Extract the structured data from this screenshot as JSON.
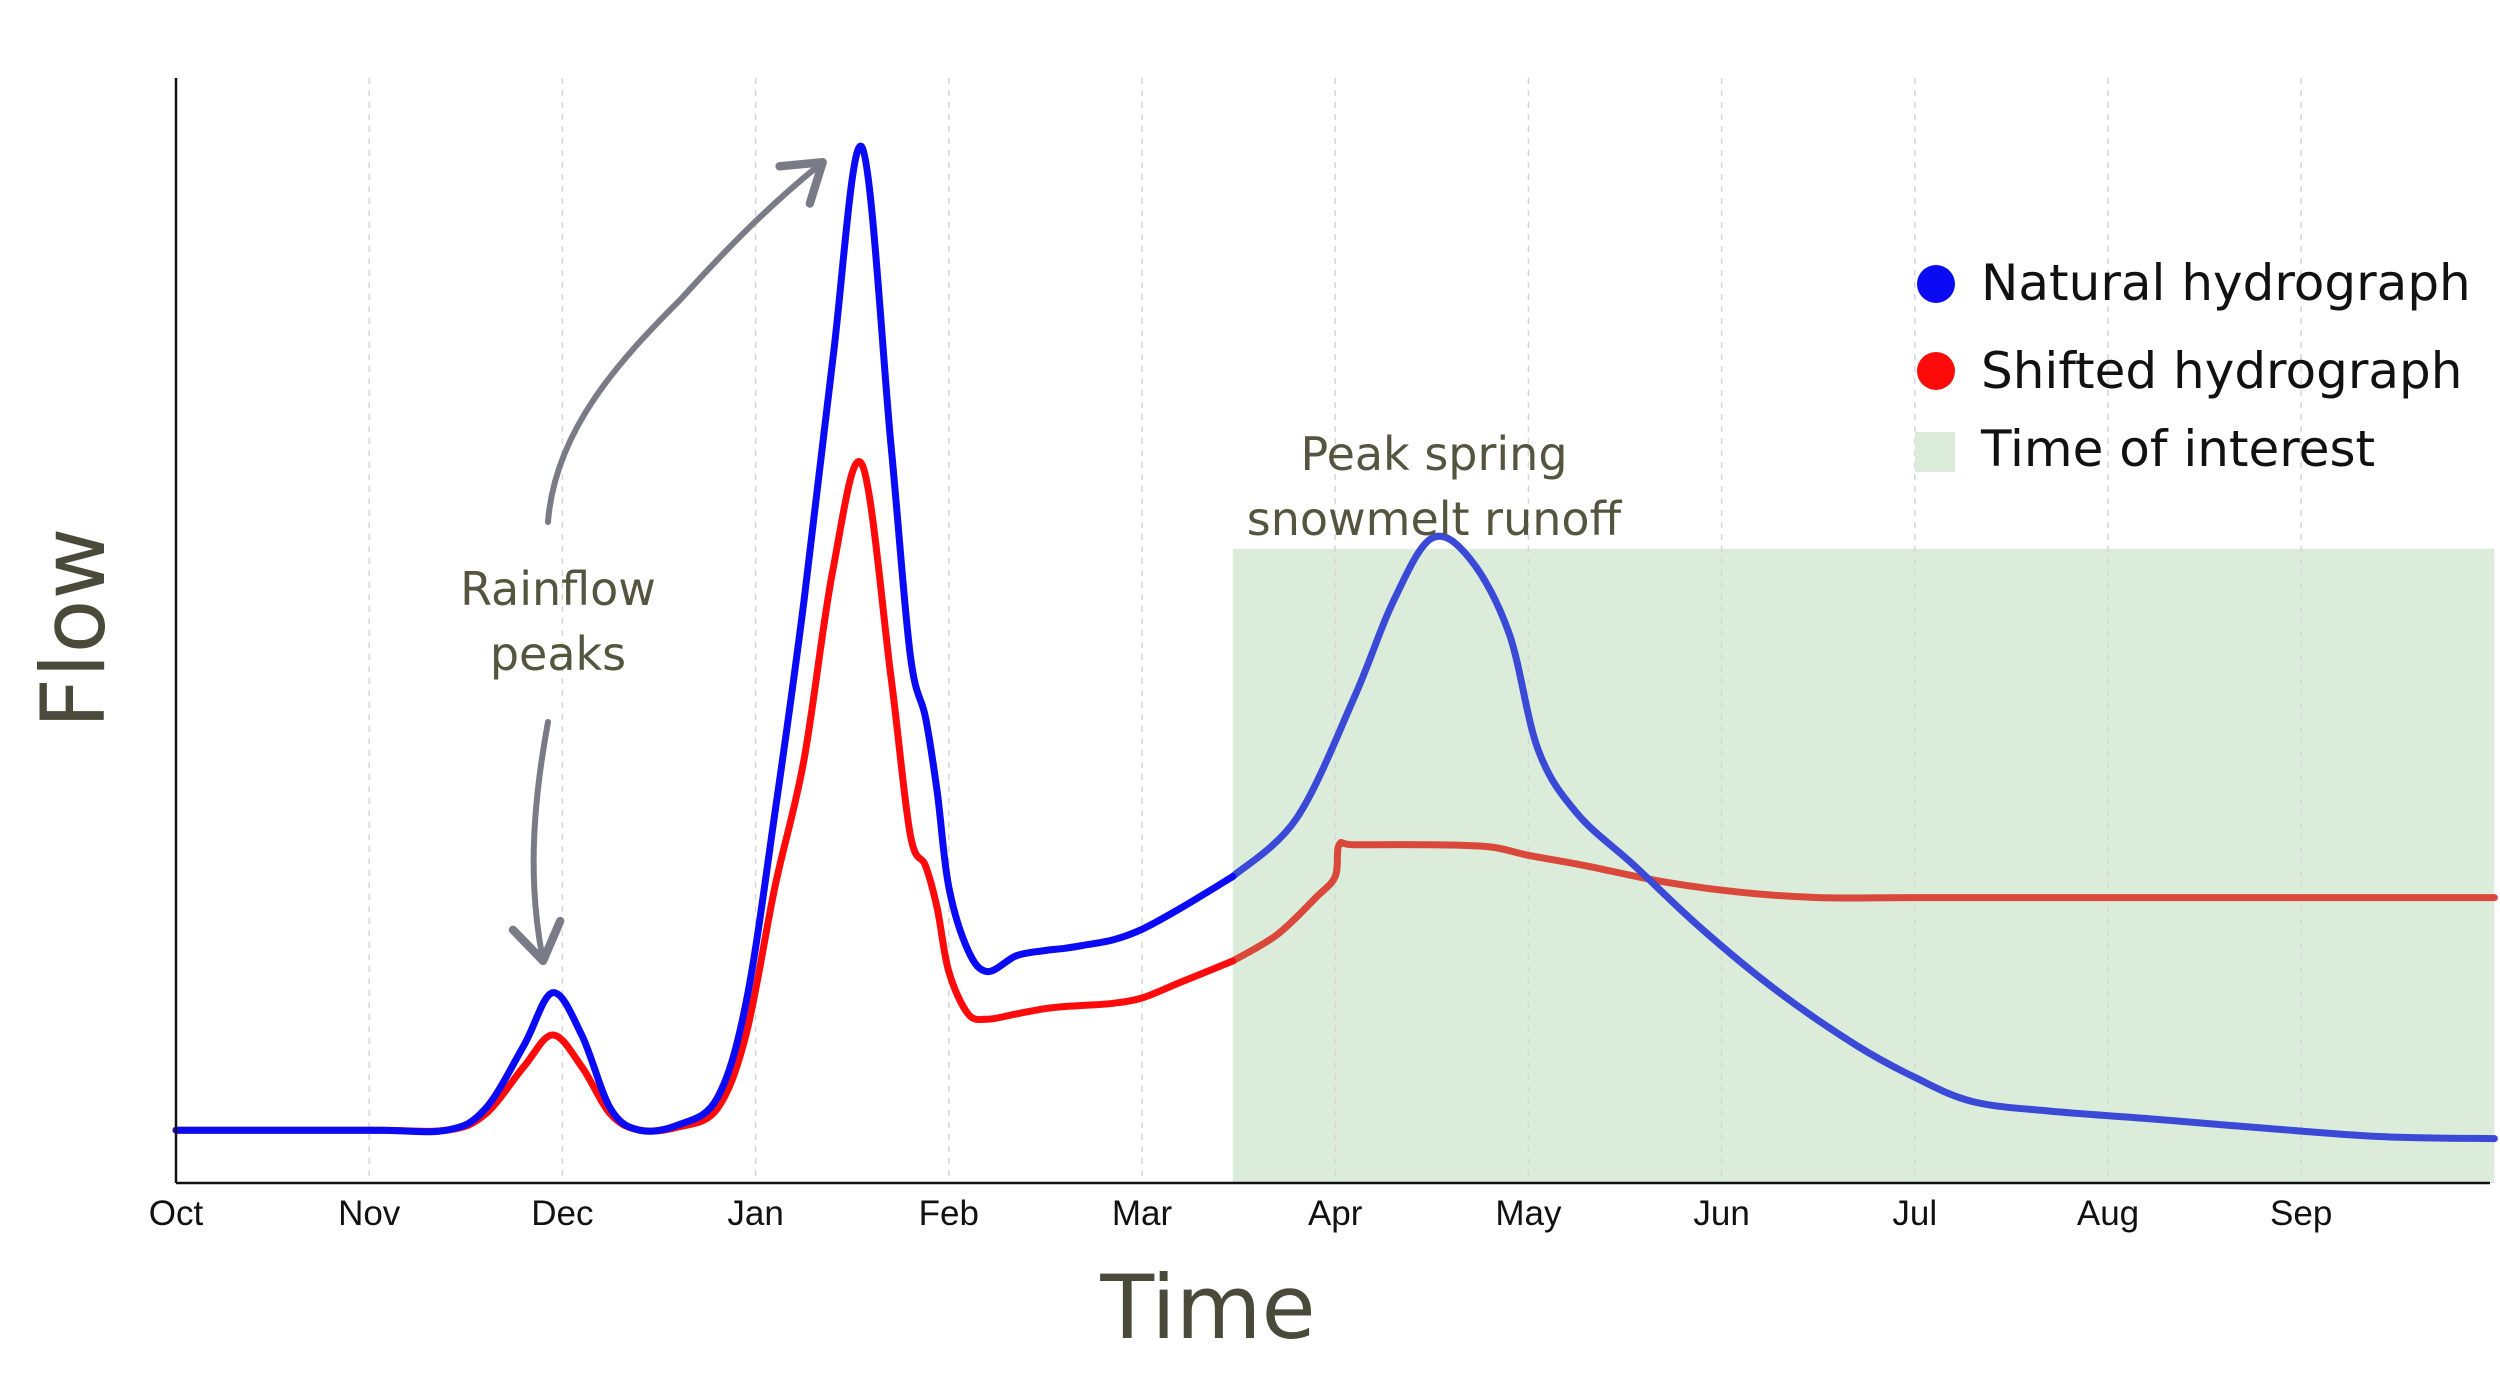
{
  "chart_data": {
    "type": "line",
    "xlabel": "Time",
    "ylabel": "Flow",
    "x_ticks": [
      "Oct",
      "Nov",
      "Dec",
      "Jan",
      "Feb",
      "Mar",
      "Apr",
      "May",
      "Jun",
      "Jul",
      "Aug",
      "Sep"
    ],
    "xlim": [
      "Oct",
      "end of Sep"
    ],
    "y_tick_labels_shown": false,
    "grid": "vertical dashed",
    "legend_position": "top-right",
    "legend": [
      {
        "label": "Natural hydrograph",
        "marker": "circle",
        "color": "#0a0af5"
      },
      {
        "label": "Shifted hydrograph",
        "marker": "circle",
        "color": "#ff0a0a"
      },
      {
        "label": "Time of interest",
        "marker": "square",
        "color": "#dcecda"
      }
    ],
    "time_of_interest": {
      "start_month": 5.47,
      "end_month": 12.0,
      "top_relative": 0.6
    },
    "annotations": [
      {
        "lines": [
          "Rainflow",
          "peaks"
        ]
      },
      {
        "lines": [
          "Peak spring",
          "snowmelt runoff"
        ]
      }
    ],
    "series": [
      {
        "name": "Natural hydrograph",
        "color": "#0a0af5",
        "x": [
          0,
          1.0,
          1.4,
          1.6,
          1.8,
          1.95,
          2.1,
          2.25,
          2.4,
          2.6,
          2.8,
          2.95,
          3.1,
          3.25,
          3.4,
          3.55,
          3.7,
          3.8,
          3.88,
          3.94,
          4.0,
          4.1,
          4.2,
          4.35,
          4.5,
          4.6,
          4.7,
          4.85,
          5.0,
          5.2,
          5.47
        ],
        "y": [
          0.05,
          0.05,
          0.05,
          0.07,
          0.13,
          0.18,
          0.14,
          0.07,
          0.05,
          0.055,
          0.08,
          0.17,
          0.35,
          0.55,
          0.78,
          0.98,
          0.7,
          0.5,
          0.44,
          0.37,
          0.28,
          0.22,
          0.2,
          0.215,
          0.22,
          0.222,
          0.225,
          0.23,
          0.24,
          0.26,
          0.29
        ]
      },
      {
        "name": "Shifted hydrograph",
        "color": "#ff0a0a",
        "x": [
          0,
          1.0,
          1.4,
          1.6,
          1.8,
          1.95,
          2.1,
          2.25,
          2.4,
          2.6,
          2.8,
          2.95,
          3.1,
          3.25,
          3.4,
          3.55,
          3.7,
          3.8,
          3.88,
          3.94,
          4.0,
          4.1,
          4.2,
          4.35,
          4.5,
          4.6,
          4.7,
          4.85,
          5.0,
          5.2,
          5.47
        ],
        "y": [
          0.05,
          0.05,
          0.05,
          0.065,
          0.11,
          0.14,
          0.11,
          0.065,
          0.05,
          0.053,
          0.07,
          0.14,
          0.28,
          0.4,
          0.58,
          0.68,
          0.48,
          0.33,
          0.3,
          0.26,
          0.2,
          0.16,
          0.155,
          0.16,
          0.165,
          0.167,
          0.168,
          0.17,
          0.175,
          0.19,
          0.21
        ]
      },
      {
        "name": "Natural hydrograph (time of interest)",
        "color": "#3a4ad6",
        "x": [
          5.47,
          5.8,
          6.1,
          6.3,
          6.5,
          6.7,
          6.9,
          7.05,
          7.25,
          7.55,
          7.9,
          8.3,
          8.7,
          9.0,
          9.3,
          9.7,
          10.2,
          10.8,
          11.4,
          12.0
        ],
        "y": [
          0.29,
          0.345,
          0.46,
          0.55,
          0.61,
          0.59,
          0.52,
          0.41,
          0.35,
          0.3,
          0.24,
          0.18,
          0.13,
          0.1,
          0.077,
          0.068,
          0.061,
          0.052,
          0.044,
          0.042
        ]
      },
      {
        "name": "Shifted hydrograph (time of interest)",
        "color": "#d9483b",
        "x": [
          5.47,
          5.7,
          5.9,
          6.0,
          6.02,
          6.1,
          6.5,
          6.8,
          7.0,
          7.3,
          7.7,
          8.1,
          8.5,
          9.0,
          10.0,
          11.0,
          12.0
        ],
        "y": [
          0.21,
          0.235,
          0.27,
          0.29,
          0.32,
          0.32,
          0.32,
          0.318,
          0.31,
          0.3,
          0.285,
          0.275,
          0.27,
          0.27,
          0.27,
          0.27,
          0.27
        ]
      }
    ]
  }
}
